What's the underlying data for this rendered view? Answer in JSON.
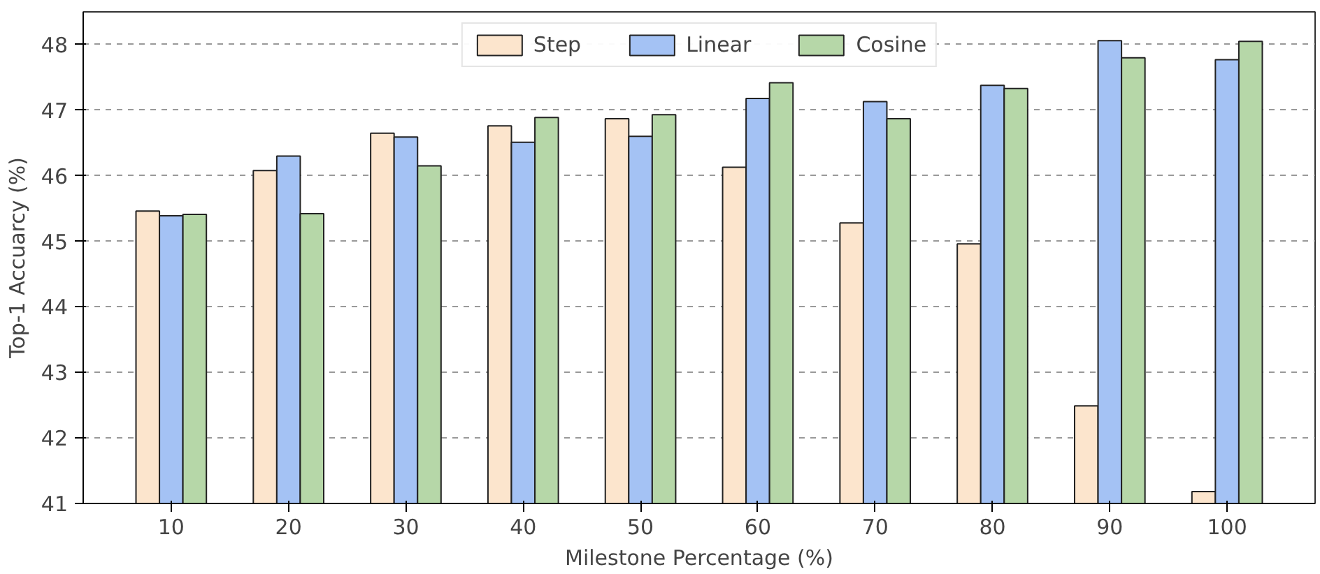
{
  "chart_data": {
    "type": "bar",
    "xlabel": "Milestone Percentage (%)",
    "ylabel": "Top-1 Accuarcy (%)",
    "categories": [
      "10",
      "20",
      "30",
      "40",
      "50",
      "60",
      "70",
      "80",
      "90",
      "100"
    ],
    "series": [
      {
        "name": "Step",
        "color": "#fce5cd",
        "values": [
          45.46,
          46.08,
          46.65,
          46.76,
          46.87,
          46.13,
          45.28,
          44.96,
          42.49,
          41.18
        ]
      },
      {
        "name": "Linear",
        "color": "#a4c2f4",
        "values": [
          45.39,
          46.3,
          46.59,
          46.51,
          46.6,
          47.18,
          47.13,
          47.38,
          48.06,
          47.77
        ]
      },
      {
        "name": "Cosine",
        "color": "#b6d7a8",
        "values": [
          45.41,
          45.42,
          46.15,
          46.89,
          46.93,
          47.42,
          46.87,
          47.33,
          47.8,
          48.05
        ]
      }
    ],
    "ylim": [
      41,
      48.5
    ],
    "yticks": [
      41,
      42,
      43,
      44,
      45,
      46,
      47,
      48
    ],
    "grid": "y",
    "legend": "top"
  }
}
